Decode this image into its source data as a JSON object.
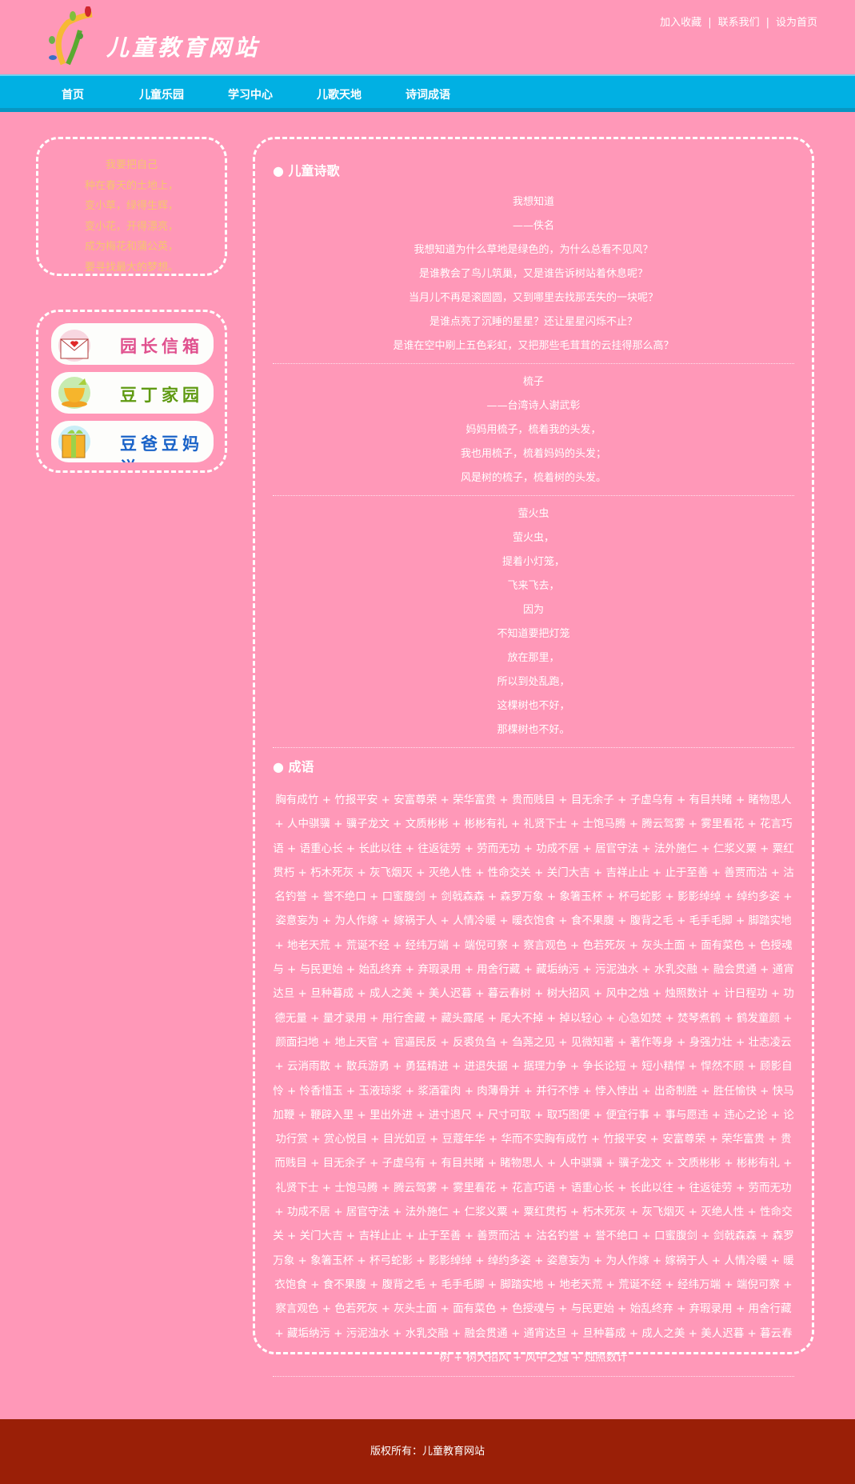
{
  "header": {
    "site_title": "儿童教育网站",
    "links": [
      "加入收藏",
      "联系我们",
      "设为首页"
    ],
    "separator": "|"
  },
  "nav": [
    "首页",
    "儿童乐园",
    "学习中心",
    "儿歌天地",
    "诗词成语"
  ],
  "sidebar": {
    "poem": [
      "我要把自己",
      "种在春天的土地上，",
      "变小草，绿得生辉，",
      "变小花，开得漂亮，",
      "成为梅花和蒲公英，",
      "要寻找最大的梦想。"
    ],
    "buttons": [
      {
        "label": "园长信箱",
        "icon": "envelope-heart-icon",
        "color": "#e0508e"
      },
      {
        "label": "豆丁家园",
        "icon": "teacup-icon",
        "color": "#5f9a12"
      },
      {
        "label": "豆爸豆妈说",
        "icon": "gift-box-icon",
        "color": "#1a63c8"
      }
    ]
  },
  "main": {
    "poems_title": "● 儿童诗歌",
    "poems": [
      [
        "我想知道",
        "——佚名",
        "我想知道为什么草地是绿色的，为什么总看不见风？",
        "是谁教会了鸟儿筑巢，又是谁告诉树站着休息呢？",
        "当月儿不再是滚圆圆，又到哪里去找那丢失的一块呢？",
        "是谁点亮了沉睡的星星？还让星星闪烁不止？",
        "是谁在空中刷上五色彩虹，又把那些毛茸茸的云挂得那么高？"
      ],
      [
        "梳子",
        "——台湾诗人谢武彰",
        "妈妈用梳子，梳着我的头发，",
        "我也用梳子，梳着妈妈的头发；",
        "风是树的梳子，梳着树的头发。"
      ],
      [
        "萤火虫",
        "萤火虫，",
        "提着小灯笼，",
        "飞来飞去，",
        "因为",
        "不知道要把灯笼",
        "放在那里，",
        "所以到处乱跑，",
        "这棵树也不好，",
        "那棵树也不好。"
      ]
    ],
    "idioms_title": "● 成语",
    "idioms": "胸有成竹 + 竹报平安 + 安富尊荣 + 荣华富贵 + 贵而贱目 + 目无余子 + 子虚乌有 + 有目共睹 + 睹物思人 + 人中骐骥 + 骥子龙文 + 文质彬彬 + 彬彬有礼 + 礼贤下士 + 士饱马腾 + 腾云驾雾 + 雾里看花 + 花言巧语 + 语重心长 + 长此以往 + 往返徒劳 + 劳而无功 + 功成不居 + 居官守法 + 法外施仁 + 仁浆义粟 + 粟红贯朽 + 朽木死灰 + 灰飞烟灭 + 灭绝人性 + 性命交关 + 关门大吉 + 吉祥止止 + 止于至善 + 善贾而沽 + 沽名钓誉 + 誉不绝口 + 口蜜腹剑 + 剑戟森森 + 森罗万象 + 象箸玉杯 + 杯弓蛇影 + 影影绰绰 + 绰约多姿 + 姿意妄为 + 为人作嫁 + 嫁祸于人 + 人情冷暖 + 暖衣饱食 + 食不果腹 + 腹背之毛 + 毛手毛脚 + 脚踏实地 + 地老天荒 + 荒诞不经 + 经纬万端 + 端倪可察 + 察言观色 + 色若死灰 + 灰头土面 + 面有菜色 + 色授魂与 + 与民更始 + 始乱终弃 + 弃瑕录用 + 用舍行藏 + 藏垢纳污 + 污泥浊水 + 水乳交融 + 融会贯通 + 通宵达旦 + 旦种暮成 + 成人之美 + 美人迟暮 + 暮云春树 + 树大招风 + 风中之烛 + 烛照数计 + 计日程功 + 功德无量 + 量才录用 + 用行舍藏 + 藏头露尾 + 尾大不掉 + 掉以轻心 + 心急如焚 + 焚琴煮鹤 + 鹤发童颜 + 颜面扫地 + 地上天官 + 官逼民反 + 反裘负刍 + 刍荛之见 + 见微知著 + 著作等身 + 身强力壮 + 壮志凌云 + 云消雨散 + 散兵游勇 + 勇猛精进 + 进退失据 + 据理力争 + 争长论短 + 短小精悍 + 悍然不顾 + 顾影自怜 + 怜香惜玉 + 玉液琼浆 + 浆酒霍肉 + 肉薄骨并 + 并行不悖 + 悖入悖出 + 出奇制胜 + 胜任愉快 + 快马加鞭 + 鞭辟入里 + 里出外进 + 进寸退尺 + 尺寸可取 + 取巧图便 + 便宜行事 + 事与愿违 + 违心之论 + 论功行赏 + 赏心悦目 + 目光如豆 + 豆蔻年华 + 华而不实胸有成竹 + 竹报平安 + 安富尊荣 + 荣华富贵 + 贵而贱目 + 目无余子 + 子虚乌有 + 有目共睹 + 睹物思人 + 人中骐骥 + 骥子龙文 + 文质彬彬 + 彬彬有礼 + 礼贤下士 + 士饱马腾 + 腾云驾雾 + 雾里看花 + 花言巧语 + 语重心长 + 长此以往 + 往返徒劳 + 劳而无功 + 功成不居 + 居官守法 + 法外施仁 + 仁浆义粟 + 粟红贯朽 + 朽木死灰 + 灰飞烟灭 + 灭绝人性 + 性命交关 + 关门大吉 + 吉祥止止 + 止于至善 + 善贾而沽 + 沽名钓誉 + 誉不绝口 + 口蜜腹剑 + 剑戟森森 + 森罗万象 + 象箸玉杯 + 杯弓蛇影 + 影影绰绰 + 绰约多姿 + 姿意妄为 + 为人作嫁 + 嫁祸于人 + 人情冷暖 + 暖衣饱食 + 食不果腹 + 腹背之毛 + 毛手毛脚 + 脚踏实地 + 地老天荒 + 荒诞不经 + 经纬万端 + 端倪可察 + 察言观色 + 色若死灰 + 灰头土面 + 面有菜色 + 色授魂与 + 与民更始 + 始乱终弃 + 弃瑕录用 + 用舍行藏 + 藏垢纳污 + 污泥浊水 + 水乳交融 + 融会贯通 + 通宵达旦 + 旦种暮成 + 成人之美 + 美人迟暮 + 暮云春树 + 树大招风 + 风中之烛 + 烛照数计"
  },
  "footer": {
    "copyright": "版权所有：儿童教育网站"
  },
  "colors": {
    "background": "#ff98b8",
    "nav": "#01b0e3",
    "footer": "#9a1f07",
    "sidebar_poem": "#f6c56f"
  }
}
